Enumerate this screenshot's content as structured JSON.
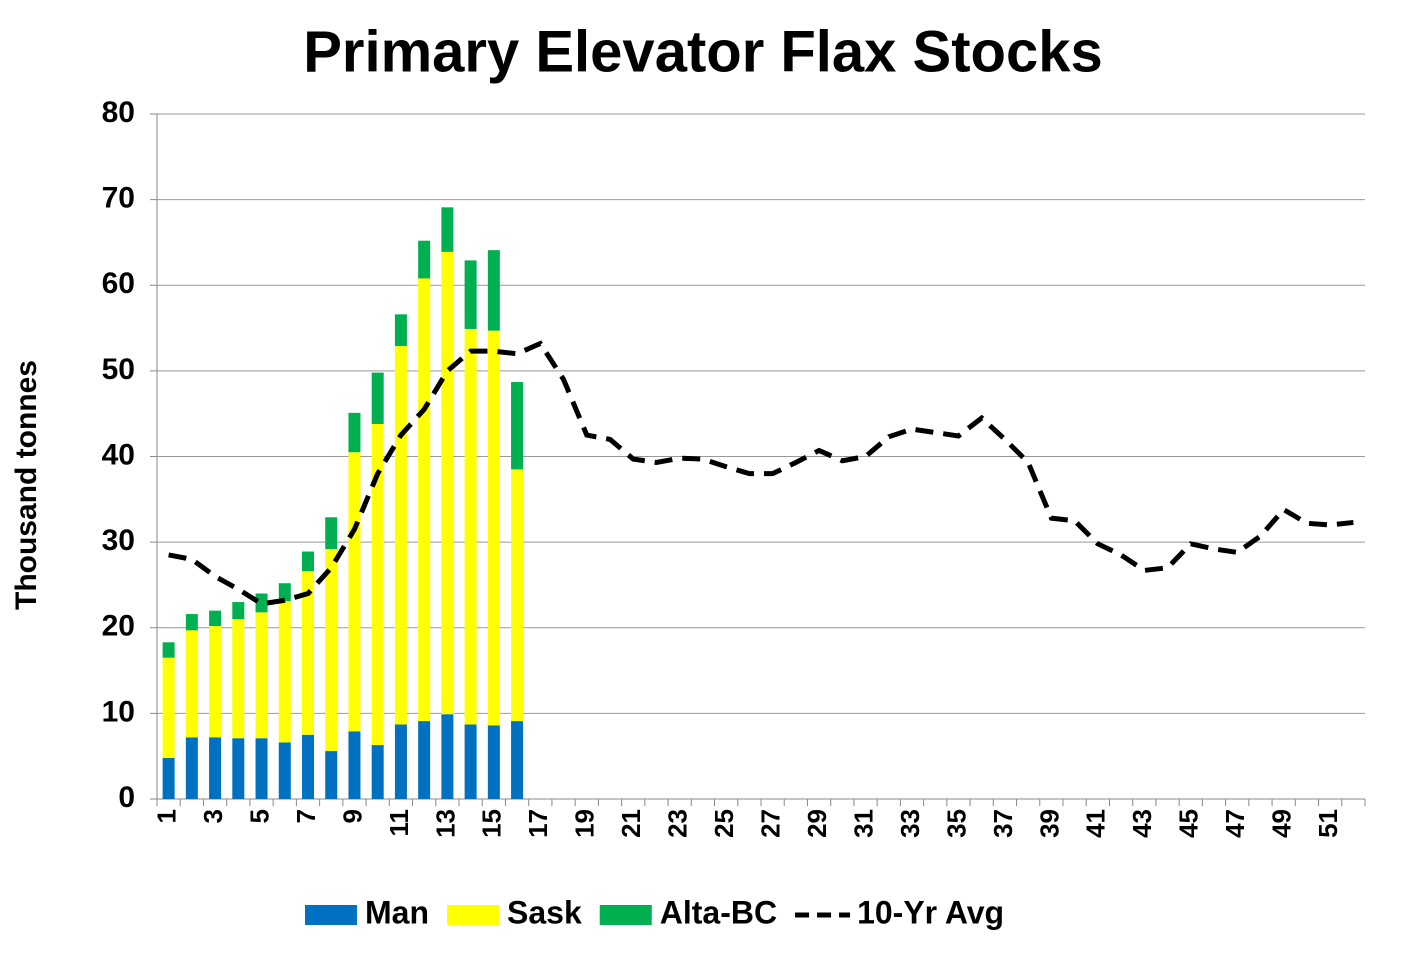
{
  "chart_data": {
    "type": "bar",
    "stacked": true,
    "title": "Primary Elevator Flax Stocks",
    "y_label": "Thousand tonnes",
    "categories": [
      1,
      null,
      3,
      null,
      5,
      null,
      7,
      null,
      9,
      null,
      11,
      null,
      13,
      null,
      15,
      null,
      17,
      null,
      19,
      null,
      21,
      null,
      23,
      null,
      25,
      null,
      27,
      null,
      29,
      null,
      31,
      null,
      33,
      null,
      35,
      null,
      37,
      null,
      39,
      null,
      41,
      null,
      43,
      null,
      45,
      null,
      47,
      null,
      49,
      null,
      51,
      null
    ],
    "series": [
      {
        "name": "Man",
        "color": "#0070c0",
        "values": [
          4.8,
          7.2,
          7.2,
          7.1,
          7.1,
          6.6,
          7.5,
          5.6,
          7.9,
          6.3,
          8.7,
          9.1,
          9.9,
          8.7,
          8.6,
          9.1,
          null,
          null,
          null,
          null,
          null,
          null,
          null,
          null,
          null,
          null,
          null,
          null,
          null,
          null,
          null,
          null,
          null,
          null,
          null,
          null,
          null,
          null,
          null,
          null,
          null,
          null,
          null,
          null,
          null,
          null,
          null,
          null,
          null,
          null,
          null,
          null
        ]
      },
      {
        "name": "Sask",
        "color": "#ffff00",
        "values": [
          11.7,
          12.5,
          13.0,
          13.9,
          14.7,
          16.5,
          19.1,
          23.6,
          32.6,
          37.5,
          44.2,
          51.7,
          54.0,
          46.2,
          46.1,
          29.4,
          null,
          null,
          null,
          null,
          null,
          null,
          null,
          null,
          null,
          null,
          null,
          null,
          null,
          null,
          null,
          null,
          null,
          null,
          null,
          null,
          null,
          null,
          null,
          null,
          null,
          null,
          null,
          null,
          null,
          null,
          null,
          null,
          null,
          null,
          null,
          null
        ]
      },
      {
        "name": "Alta-BC",
        "color": "#00b050",
        "values": [
          1.8,
          1.9,
          1.8,
          2.0,
          2.2,
          2.1,
          2.3,
          3.7,
          4.6,
          6.0,
          3.7,
          4.4,
          5.2,
          8.0,
          9.4,
          10.2,
          null,
          null,
          null,
          null,
          null,
          null,
          null,
          null,
          null,
          null,
          null,
          null,
          null,
          null,
          null,
          null,
          null,
          null,
          null,
          null,
          null,
          null,
          null,
          null,
          null,
          null,
          null,
          null,
          null,
          null,
          null,
          null,
          null,
          null,
          null,
          null
        ]
      },
      {
        "name": "10-Yr Avg",
        "type": "line",
        "dashed": true,
        "color": "#000000",
        "values": [
          28.5,
          28,
          26,
          24.5,
          22.8,
          23.2,
          24,
          27,
          31.5,
          38,
          42.5,
          45.5,
          50,
          52.3,
          52.3,
          52,
          53.2,
          49,
          42.5,
          42,
          39.7,
          39.3,
          39.8,
          39.7,
          38.8,
          38,
          38,
          39.3,
          40.7,
          39.5,
          40,
          42.3,
          43.2,
          42.8,
          42.4,
          44.5,
          42,
          39.3,
          32.8,
          32.5,
          29.8,
          28.5,
          26.7,
          27,
          29.8,
          29.2,
          28.8,
          30.7,
          33.8,
          32.2,
          32,
          32.3
        ]
      }
    ],
    "ylim": [
      0,
      80
    ],
    "yticks": [
      0,
      10,
      20,
      30,
      40,
      50,
      60,
      70,
      80
    ],
    "grid": true,
    "legend": "bottom"
  }
}
